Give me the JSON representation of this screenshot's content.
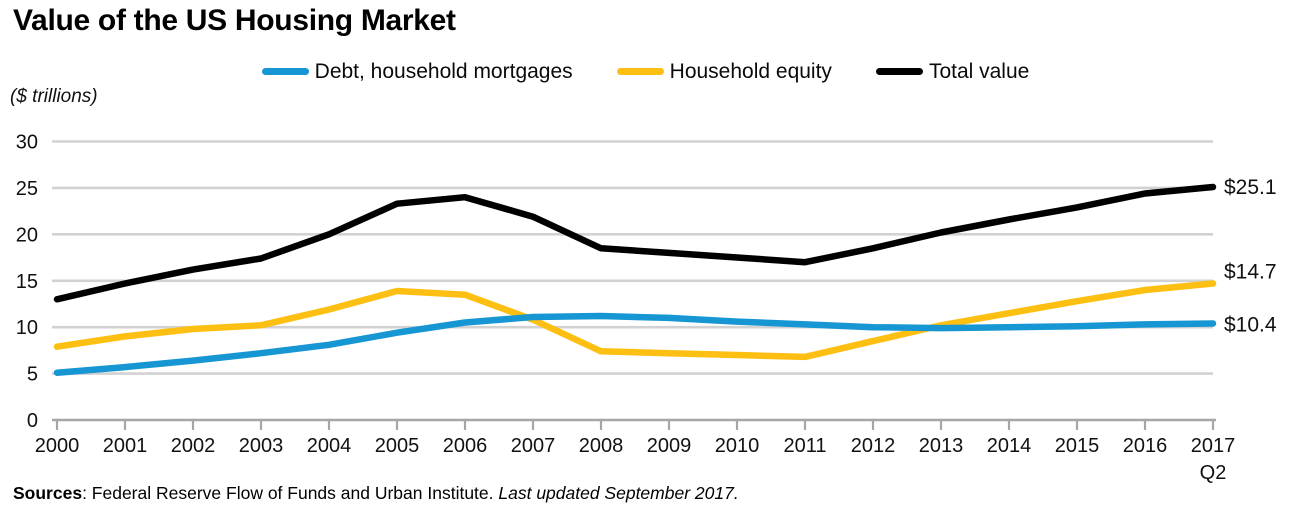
{
  "title": "Value of the US Housing Market",
  "units_label": "($ trillions)",
  "source_note": {
    "bold": "Sources",
    "regular": ": Federal Reserve Flow of Funds and Urban Institute. ",
    "italic": "Last updated September 2017."
  },
  "colors": {
    "debt_blue": "#1696d2",
    "equity_yellow": "#fdbf11",
    "total_black": "#000000",
    "gridline": "#d2d2d2",
    "axis": "#a6a6a6",
    "text": "#111111"
  },
  "chart_data": {
    "type": "line",
    "title": "Value of the US Housing Market",
    "units": "$ trillions",
    "categories": [
      "2000",
      "2001",
      "2002",
      "2003",
      "2004",
      "2005",
      "2006",
      "2007",
      "2008",
      "2009",
      "2010",
      "2011",
      "2012",
      "2013",
      "2014",
      "2015",
      "2016",
      "2017\nQ2"
    ],
    "y_ticks": [
      0,
      5,
      10,
      15,
      20,
      25,
      30
    ],
    "ylim": [
      0,
      30
    ],
    "grid": true,
    "legend_position": "top",
    "series": [
      {
        "name": "Debt, household mortgages",
        "color": "#1696d2",
        "end_label": "$10.4",
        "values": [
          5.1,
          5.7,
          6.4,
          7.2,
          8.1,
          9.4,
          10.5,
          11.1,
          11.2,
          11.0,
          10.6,
          10.3,
          10.0,
          9.9,
          10.0,
          10.1,
          10.3,
          10.4
        ]
      },
      {
        "name": "Household equity",
        "color": "#fdbf11",
        "end_label": "$14.7",
        "values": [
          7.9,
          9.0,
          9.8,
          10.2,
          11.9,
          13.9,
          13.5,
          10.8,
          7.4,
          7.2,
          7.0,
          6.8,
          8.5,
          10.2,
          11.5,
          12.8,
          14.0,
          14.7
        ]
      },
      {
        "name": "Total value",
        "color": "#000000",
        "end_label": "$25.1",
        "values": [
          13.0,
          14.7,
          16.2,
          17.4,
          20.0,
          23.3,
          24.0,
          21.9,
          18.5,
          18.0,
          17.5,
          17.0,
          18.5,
          20.2,
          21.6,
          22.9,
          24.4,
          25.1
        ]
      }
    ]
  }
}
